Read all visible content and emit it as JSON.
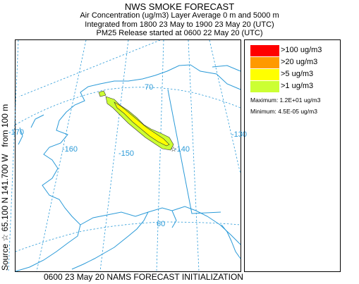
{
  "title": {
    "main": "NWS SMOKE FORECAST",
    "line1": "Air Concentration (ug/m3) Layer Average    0 m and  5000 m",
    "line2": "Integrated from 1800 23 May to 1900 23 May 20 (UTC)",
    "line3": "PM25 Release started at 0600 22 May 20 (UTC)"
  },
  "side_label": {
    "source": "Source ☆ 65.100 N 141.700  W",
    "from": "from  100 m"
  },
  "footer": "0600 23 May 20 NAMS FORECAST INITIALIZATION",
  "map": {
    "latitude_labels": [
      "70",
      "60"
    ],
    "longitude_labels": [
      "-170",
      "-160",
      "-150",
      "-140",
      "-130"
    ],
    "source_marker": "☆"
  },
  "legend": {
    "items": [
      {
        "label": ">100 ug/m3",
        "color": "#ff0000"
      },
      {
        "label": ">20 ug/m3",
        "color": "#ff9900"
      },
      {
        "label": ">5 ug/m3",
        "color": "#ffff00"
      },
      {
        "label": ">1 ug/m3",
        "color": "#ccff33"
      }
    ],
    "maximum": "Maximum: 1.2E+01 ug/m3",
    "minimum": "Minimum: 4.5E-05 ug/m3"
  },
  "colors": {
    "coastline": "#2a9ad8",
    "graticule": "#2a9ad8",
    "plume_outer": "#ccff33",
    "plume_inner": "#ffff00"
  }
}
